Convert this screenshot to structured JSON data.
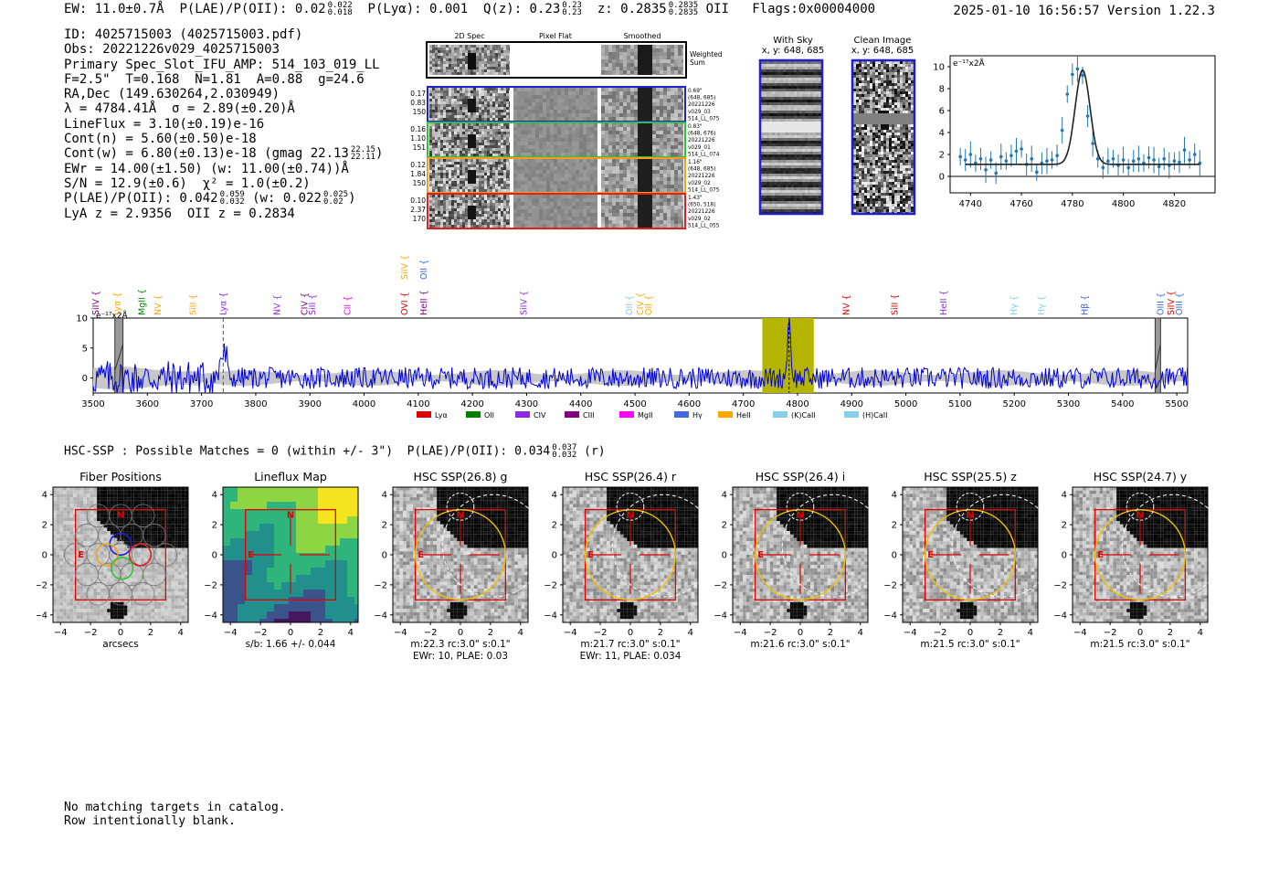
{
  "header": {
    "ew": "EW: 11.0±0.7Å",
    "plae_label": "P(LAE)/P(OII): 0.02",
    "plae_hi": "0.022",
    "plae_lo": "0.018",
    "plya": "P(Lyα): 0.001",
    "qz_label": "Q(z): 0.23",
    "qz_hi": "0.23",
    "qz_lo": "0.23",
    "z_label": "z: 0.2835",
    "z_hi": "0.2835",
    "z_lo": "0.2835",
    "z_line": "OII",
    "flags": "Flags:0x00004000",
    "timestamp": "2025-01-10 16:56:57",
    "version": "Version 1.22.3"
  },
  "info": {
    "id": "ID: 4025715003 (4025715003.pdf)",
    "obs": "Obs: 20221226v029_4025715003",
    "primary": "Primary Spec_Slot_IFU_AMP: 514_103_019_LL",
    "fiber_params": "F=2.5\"  T=0.168  N=1.81  A=0.88  g=24.6",
    "radec": "RA,Dec (149.630264,2.030949)",
    "lambda": "λ = 4784.41Å  σ = 2.89(±0.20)Å",
    "lineflux": "LineFlux = 3.10(±0.19)e-16",
    "cont_n": "Cont(n) = 5.60(±0.50)e-18",
    "cont_w": "Cont(w) = 6.80(±0.13)e-18 (gmag 22.13",
    "cont_w_hi": "22.15",
    "cont_w_lo": "22.11",
    "cont_w_end": ")",
    "ewr": "EWr = 14.00(±1.50) (w: 11.00(±0.74))Å",
    "sn": "S/N = 12.9(±0.6)  χ² = 1.0(±0.2)",
    "plae": "P(LAE)/P(OII): 0.042",
    "plae_hi": "0.059",
    "plae_lo": "0.032",
    "plae_w": "(w: 0.022",
    "plae_w_hi": "0.025",
    "plae_w_lo": "0.02",
    "plae_w_end": ")",
    "lya_z": "LyA z = 2.9356  OII z = 0.2834"
  },
  "cutouts": {
    "col_labels": [
      "2D Spec",
      "Pixel Flat",
      "Smoothed"
    ],
    "weighted_label": "Weighted Sum",
    "rows": [
      {
        "left": [
          "0.17",
          "0.83",
          "150"
        ],
        "right": [
          "0.69\"",
          "(648, 685)",
          "20221226",
          "v029_03",
          "514_LL_075"
        ],
        "color": "#1f1fd0"
      },
      {
        "left": [
          "0.16",
          "1.10",
          "151"
        ],
        "right": [
          "0.83\"",
          "(648, 676)",
          "20221226",
          "v029_01",
          "514_LL_074"
        ],
        "color": "#30c030"
      },
      {
        "left": [
          "0.12",
          "1.84",
          "150"
        ],
        "right": [
          "1.16\"",
          "(648, 685)",
          "20221226",
          "v029_02",
          "514_LL_075"
        ],
        "color": "#f0a020"
      },
      {
        "left": [
          "0.10",
          "2.37",
          "170"
        ],
        "right": [
          "1.43\"",
          "(650, 518)",
          "20221226",
          "v029_02",
          "514_LL_055"
        ],
        "color": "#e02020"
      }
    ]
  },
  "sky_panels": {
    "with_sky_title": "With Sky",
    "with_sky_xy": "x, y: 648, 685",
    "clean_title": "Clean Image",
    "clean_xy": "x, y: 648, 685"
  },
  "zoom_chart": {
    "ylabel": "e⁻¹⁷x2Å"
  },
  "main_spectrum": {
    "ylabel": "e⁻¹⁷x2Å",
    "legend": [
      {
        "label": "Lyα",
        "color": "#e00000"
      },
      {
        "label": "OII",
        "color": "#008000"
      },
      {
        "label": "CIV",
        "color": "#8a2be2"
      },
      {
        "label": "CIII",
        "color": "#800080"
      },
      {
        "label": "MgII",
        "color": "#ff00ff"
      },
      {
        "label": "Hγ",
        "color": "#4169e1"
      },
      {
        "label": "HeII",
        "color": "#ffa500"
      },
      {
        "label": "(K)CaII",
        "color": "#87ceeb"
      },
      {
        "label": "(H)CaII",
        "color": "#87ceeb"
      }
    ]
  },
  "hsc": {
    "summary": "HSC-SSP : Possible Matches = 0 (within +/- 3\")  P(LAE)/P(OII): 0.034",
    "summary_hi": "0.037",
    "summary_lo": "0.032",
    "summary_end": "(r)",
    "panels": [
      {
        "title": "Fiber Positions",
        "caption": [
          "arcsecs"
        ],
        "kind": "fiber"
      },
      {
        "title": "Lineflux Map",
        "caption": [
          "s/b: 1.66 +/- 0.044"
        ],
        "kind": "flux"
      },
      {
        "title": "HSC SSP(26.8) g",
        "caption": [
          "m:22.3 rc:3.0\"  s:0.1\"",
          "EWr: 10, PLAE: 0.03"
        ],
        "kind": "img",
        "r": 0.72
      },
      {
        "title": "HSC SSP(26.4) r",
        "caption": [
          "m:21.7 rc:3.0\"  s:0.1\"",
          "EWr: 11, PLAE: 0.034"
        ],
        "kind": "img",
        "r": 0.72
      },
      {
        "title": "HSC SSP(26.4) i",
        "caption": [
          "m:21.6 rc:3.0\"  s:0.1\""
        ],
        "kind": "img",
        "r": 0.72
      },
      {
        "title": "HSC SSP(25.5) z",
        "caption": [
          "m:21.5 rc:3.0\"  s:0.1\""
        ],
        "kind": "img",
        "r": 0.72
      },
      {
        "title": "HSC SSP(24.7) y",
        "caption": [
          "m:21.5 rc:3.0\"  s:0.1\""
        ],
        "kind": "img",
        "r": 0.72
      }
    ],
    "north": "N",
    "east": "E"
  },
  "footer": {
    "line1": "No matching targets in catalog.",
    "line2": "Row intentionally blank."
  },
  "chart_data": [
    {
      "type": "line",
      "title": "",
      "xlabel": "",
      "ylabel": "e⁻¹⁷x2Å",
      "xlim": [
        3500,
        5520
      ],
      "ylim": [
        -2.5,
        10
      ],
      "xticks": [
        3500,
        3600,
        3700,
        3800,
        3900,
        4000,
        4100,
        4200,
        4300,
        4400,
        4500,
        4600,
        4700,
        4800,
        4900,
        5000,
        5100,
        5200,
        5300,
        5400,
        5500
      ],
      "yticks": [
        0,
        5,
        10
      ],
      "highlight_band": [
        4735,
        4830
      ],
      "line_center": 4784.4,
      "dashed_marker": 3740,
      "hatched_regions": [
        [
          3540,
          3555
        ],
        [
          5460,
          5470
        ]
      ],
      "emission_peak": {
        "x": 4784.4,
        "y": 9.5
      },
      "line_labels": [
        {
          "label": "SiIV",
          "x": 3505,
          "color": "#800080"
        },
        {
          "label": "Lyα",
          "x": 3545,
          "color": "#ffa500"
        },
        {
          "label": "MgII",
          "x": 3590,
          "color": "#008000"
        },
        {
          "label": "NV",
          "x": 3620,
          "color": "#ffa500"
        },
        {
          "label": "SiII",
          "x": 3685,
          "color": "#ffa500"
        },
        {
          "label": "Lyα",
          "x": 3740,
          "color": "#8a2be2"
        },
        {
          "label": "NV",
          "x": 3840,
          "color": "#8a2be2"
        },
        {
          "label": "CIV",
          "x": 3890,
          "color": "#800080"
        },
        {
          "label": "SiII",
          "x": 3905,
          "color": "#8a2be2"
        },
        {
          "label": "CII",
          "x": 3970,
          "color": "#ff00ff"
        },
        {
          "label": "OVI",
          "x": 4075,
          "color": "#e00000"
        },
        {
          "label": "HeII",
          "x": 4110,
          "color": "#800080"
        },
        {
          "label": "SiIV",
          "x": 4295,
          "color": "#8a2be2"
        },
        {
          "label": "OII",
          "x": 4490,
          "color": "#87ceeb"
        },
        {
          "label": "CIV",
          "x": 4510,
          "color": "#ffa500"
        },
        {
          "label": "OII",
          "x": 4525,
          "color": "#ffa500"
        },
        {
          "label": "NV",
          "x": 4890,
          "color": "#e00000"
        },
        {
          "label": "SiII",
          "x": 4980,
          "color": "#e00000"
        },
        {
          "label": "HeII",
          "x": 5070,
          "color": "#8a2be2"
        },
        {
          "label": "Hγ",
          "x": 5200,
          "color": "#87ceeb"
        },
        {
          "label": "Hγ",
          "x": 5250,
          "color": "#87ceeb"
        },
        {
          "label": "Hβ",
          "x": 5330,
          "color": "#4169e1"
        },
        {
          "label": "OIII",
          "x": 5470,
          "color": "#4169e1"
        },
        {
          "label": "SiIV",
          "x": 5490,
          "color": "#e00000"
        },
        {
          "label": "OIII",
          "x": 5505,
          "color": "#4169e1"
        }
      ],
      "upper_labels": [
        {
          "label": "SiIV",
          "x": 4075,
          "color": "#ffa500"
        },
        {
          "label": "OII",
          "x": 4110,
          "color": "#4169e1"
        }
      ]
    },
    {
      "type": "line",
      "title": "",
      "xlabel": "",
      "ylabel": "e⁻¹⁷x2Å",
      "xlim": [
        4732,
        4836
      ],
      "ylim": [
        -1.5,
        11
      ],
      "xticks": [
        4740,
        4760,
        4780,
        4800,
        4820
      ],
      "yticks": [
        0,
        2,
        4,
        6,
        8,
        10
      ],
      "series": [
        {
          "name": "data",
          "x": [
            4736,
            4738,
            4740,
            4742,
            4744,
            4746,
            4748,
            4750,
            4752,
            4754,
            4756,
            4758,
            4760,
            4762,
            4764,
            4766,
            4768,
            4770,
            4772,
            4774,
            4776,
            4778,
            4780,
            4782,
            4784,
            4786,
            4788,
            4790,
            4792,
            4794,
            4796,
            4798,
            4800,
            4802,
            4804,
            4806,
            4808,
            4810,
            4812,
            4814,
            4816,
            4818,
            4820,
            4822,
            4824,
            4826,
            4828,
            4830
          ],
          "y": [
            1.8,
            1.5,
            2.0,
            1.2,
            1.6,
            0.6,
            1.5,
            0.3,
            1.8,
            1.4,
            1.9,
            2.3,
            2.5,
            1.1,
            1.6,
            0.4,
            1.2,
            1.4,
            1.5,
            1.9,
            4.2,
            7.5,
            9.3,
            9.8,
            9.2,
            5.5,
            3.0,
            1.6,
            0.8,
            1.4,
            1.6,
            1.0,
            1.5,
            0.8,
            1.4,
            1.6,
            1.2,
            1.7,
            1.5,
            0.9,
            1.6,
            1.0,
            1.4,
            1.3,
            2.4,
            1.5,
            2.0,
            1.2
          ]
        },
        {
          "name": "fit",
          "continuum": 1.1,
          "amplitude": 8.6,
          "center": 4784.0,
          "sigma": 2.9
        }
      ]
    }
  ]
}
